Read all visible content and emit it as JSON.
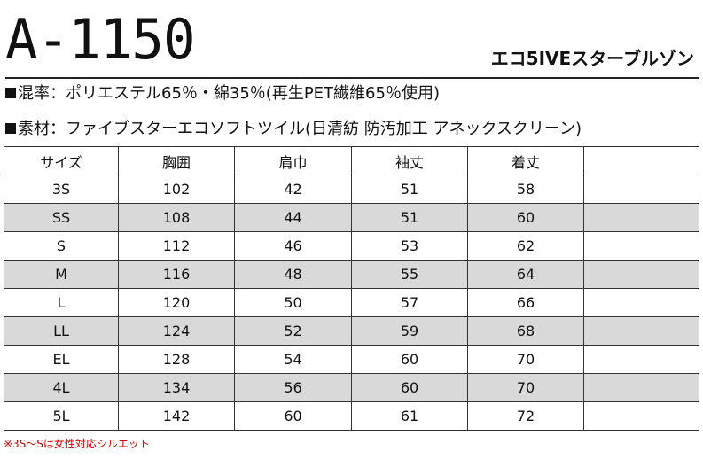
{
  "header": {
    "model_number": "A-1150",
    "product_name": "エコ5IVEスターブルゾン"
  },
  "specs": {
    "blend": "混率：ポリエステル65％・綿35％(再生PET繊維65％使用)",
    "material": "素材：ファイブスターエコソフトツイル(日清紡 防汚加工 アネックスクリーン)"
  },
  "table": {
    "headers": [
      "サイズ",
      "胸囲",
      "肩巾",
      "袖丈",
      "着丈",
      ""
    ],
    "rows": [
      {
        "size": "3S",
        "chest": "102",
        "shoulder": "42",
        "sleeve": "51",
        "length": "58",
        "extra": "",
        "shaded": false
      },
      {
        "size": "SS",
        "chest": "108",
        "shoulder": "44",
        "sleeve": "51",
        "length": "60",
        "extra": "",
        "shaded": true
      },
      {
        "size": "S",
        "chest": "112",
        "shoulder": "46",
        "sleeve": "53",
        "length": "62",
        "extra": "",
        "shaded": false
      },
      {
        "size": "M",
        "chest": "116",
        "shoulder": "48",
        "sleeve": "55",
        "length": "64",
        "extra": "",
        "shaded": true
      },
      {
        "size": "L",
        "chest": "120",
        "shoulder": "50",
        "sleeve": "57",
        "length": "66",
        "extra": "",
        "shaded": false
      },
      {
        "size": "LL",
        "chest": "124",
        "shoulder": "52",
        "sleeve": "59",
        "length": "68",
        "extra": "",
        "shaded": true
      },
      {
        "size": "EL",
        "chest": "128",
        "shoulder": "54",
        "sleeve": "60",
        "length": "70",
        "extra": "",
        "shaded": false
      },
      {
        "size": "4L",
        "chest": "134",
        "shoulder": "56",
        "sleeve": "60",
        "length": "70",
        "extra": "",
        "shaded": true
      },
      {
        "size": "5L",
        "chest": "142",
        "shoulder": "60",
        "sleeve": "61",
        "length": "72",
        "extra": "",
        "shaded": false
      }
    ]
  },
  "note": "※3S～Sは女性対応シルエット",
  "colors": {
    "shaded_row": "#d9d9d9",
    "note_text": "#d40000"
  }
}
